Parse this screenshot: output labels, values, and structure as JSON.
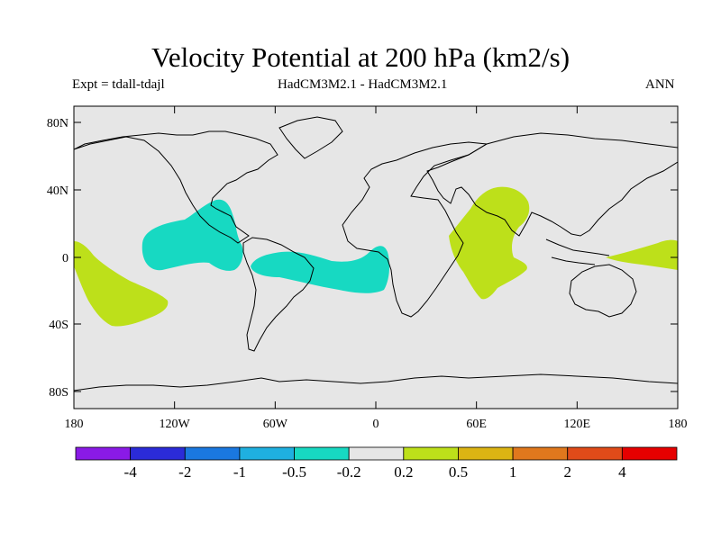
{
  "header": {
    "title": "Velocity Potential at 200 hPa (km2/s)",
    "left": "Expt = tdall-tdajl",
    "center": "HadCM3M2.1 - HadCM3M2.1",
    "right": "ANN"
  },
  "axes": {
    "lat_ticks": [
      "80N",
      "40N",
      "0",
      "40S",
      "80S"
    ],
    "lon_ticks": [
      "180",
      "120W",
      "60W",
      "0",
      "60E",
      "120E",
      "180"
    ]
  },
  "colorbar": {
    "colors": [
      "#8a1ae6",
      "#2b2bd8",
      "#1a78e0",
      "#1fb0e0",
      "#17d9c2",
      "#e6e6e6",
      "#bde01a",
      "#dcb413",
      "#e0781d",
      "#e04b19",
      "#e60000"
    ],
    "labels": [
      "-4",
      "-2",
      "-1",
      "-0.5",
      "-0.2",
      "0.2",
      "0.5",
      "1",
      "2",
      "4"
    ]
  },
  "colors": {
    "ocean": "#e6e6e6",
    "negative": "#17d9c2",
    "positive": "#bde01a"
  }
}
